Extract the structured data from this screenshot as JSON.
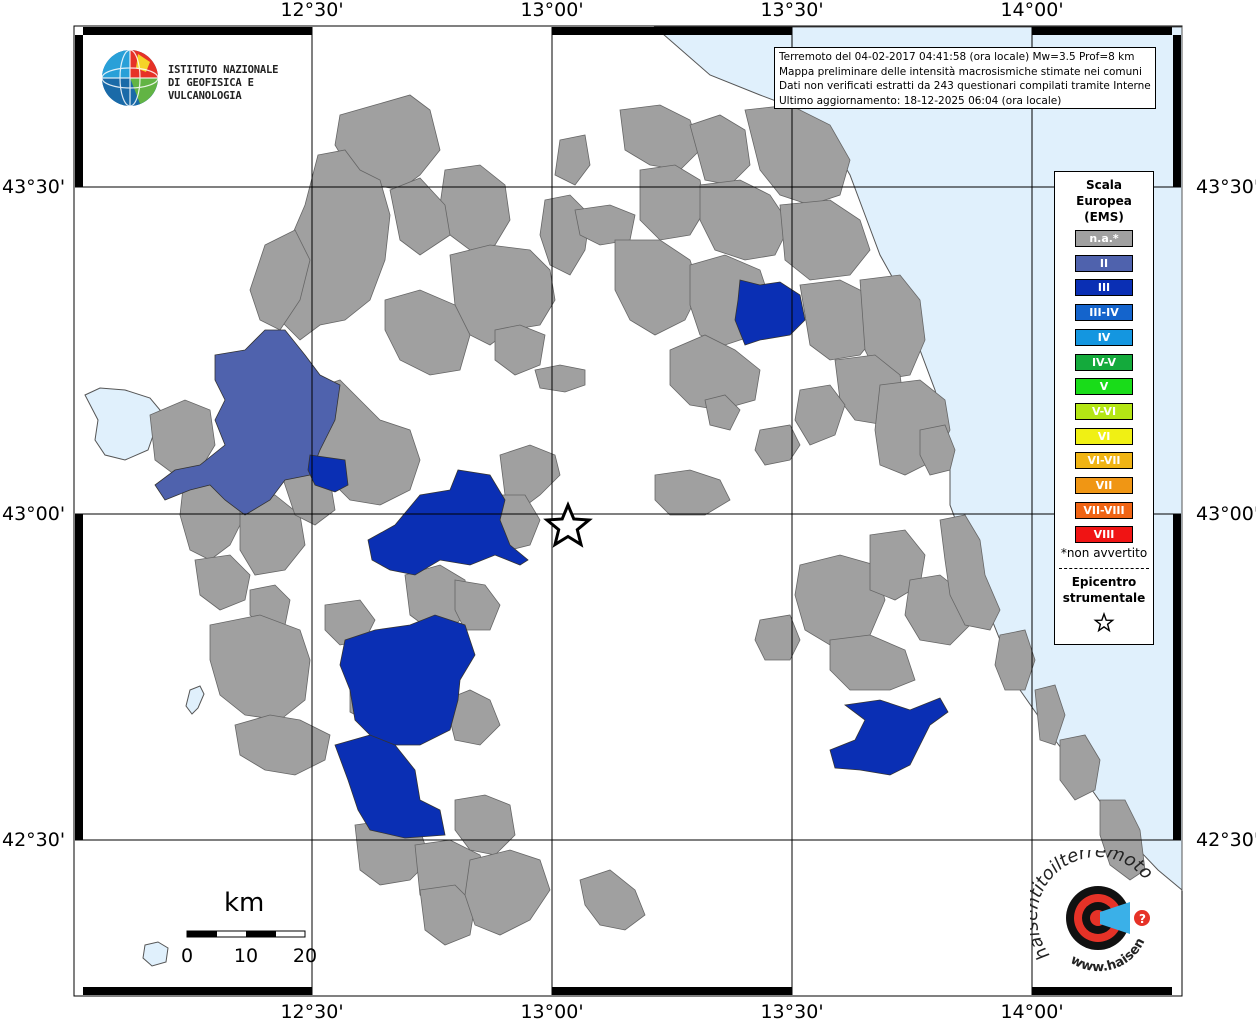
{
  "coordinates": {
    "top": [
      "12°30'",
      "13°00'",
      "13°30'",
      "14°00'"
    ],
    "bottom": [
      "12°30'",
      "13°00'",
      "13°30'",
      "14°00'"
    ],
    "left": [
      "43°30'",
      "43°00'",
      "42°30'"
    ],
    "right": [
      "43°30'",
      "43°00'",
      "42°30'"
    ]
  },
  "logo": {
    "line1": "ISTITUTO NAZIONALE",
    "line2": "DI GEOFISICA E VULCANOLOGIA"
  },
  "info": {
    "line1": "Terremoto del 04-02-2017 04:41:58 (ora locale) Mw=3.5 Prof=8 km",
    "line2": "Mappa preliminare delle intensità macrosismiche stimate nei comuni",
    "line3": "Dati non verificati estratti da 243 questionari compilati tramite Internet.",
    "line4": "Ultimo aggiornamento: 18-12-2025 06:04 (ora locale)"
  },
  "legend": {
    "title_line1": "Scala",
    "title_line2": "Europea",
    "title_line3": "(EMS)",
    "items": [
      {
        "label": "n.a.*",
        "color": "#a0a0a0"
      },
      {
        "label": "II",
        "color": "#4f62ad"
      },
      {
        "label": "III",
        "color": "#0a2fb4"
      },
      {
        "label": "III-IV",
        "color": "#1464cc"
      },
      {
        "label": "IV",
        "color": "#1496e0"
      },
      {
        "label": "IV-V",
        "color": "#14aa3c"
      },
      {
        "label": "V",
        "color": "#19dc19"
      },
      {
        "label": "V-VI",
        "color": "#b4e614"
      },
      {
        "label": "VI",
        "color": "#f0f014"
      },
      {
        "label": "VI-VII",
        "color": "#f0b414"
      },
      {
        "label": "VII",
        "color": "#f09614"
      },
      {
        "label": "VII-VIII",
        "color": "#f06414"
      },
      {
        "label": "VIII",
        "color": "#f01414"
      }
    ],
    "note": "*non avvertito",
    "epicenter_line1": "Epicentro",
    "epicenter_line2": "strumentale"
  },
  "scale_bar": {
    "unit": "km",
    "ticks": [
      "0",
      "10",
      "20"
    ]
  },
  "colors": {
    "sea": "#e0f0fc",
    "land": "#ffffff",
    "na": "#a0a0a0",
    "ems_II": "#4f62ad",
    "ems_III": "#0a2fb4"
  }
}
